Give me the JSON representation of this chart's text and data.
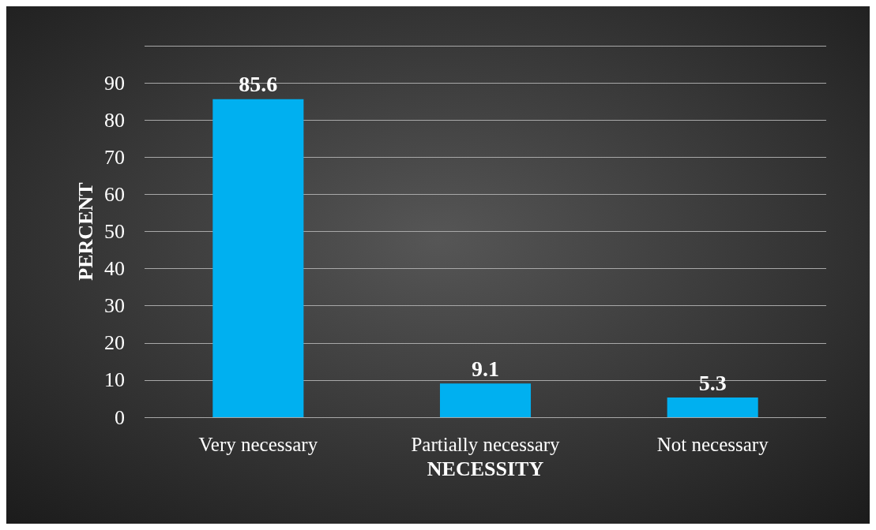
{
  "chart_data": {
    "type": "bar",
    "xlabel": "NECESSITY",
    "ylabel": "PERCENT",
    "categories": [
      "Very necessary",
      "Partially necessary",
      "Not necessary"
    ],
    "values": [
      85.6,
      9.1,
      5.3
    ],
    "color": "#00b0f0",
    "data_labels": true,
    "ylim": [
      0,
      100
    ],
    "yticks": [
      0,
      10,
      20,
      30,
      40,
      50,
      60,
      70,
      80,
      90,
      {
        "value": 100,
        "label": null
      }
    ],
    "grid": "y"
  }
}
